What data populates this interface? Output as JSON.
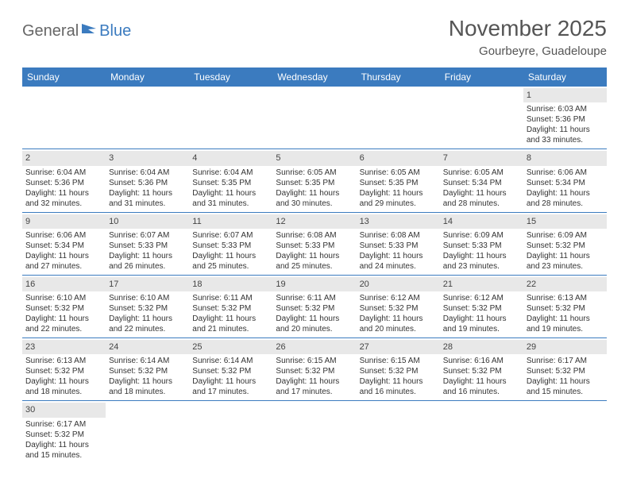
{
  "logo": {
    "general": "General",
    "blue": "Blue"
  },
  "title": "November 2025",
  "location": "Gourbeyre, Guadeloupe",
  "colors": {
    "header_bg": "#3b7bbf",
    "header_text": "#ffffff",
    "daynum_bg": "#e8e8e8",
    "border": "#3b7bbf"
  },
  "dayNames": [
    "Sunday",
    "Monday",
    "Tuesday",
    "Wednesday",
    "Thursday",
    "Friday",
    "Saturday"
  ],
  "weeks": [
    [
      null,
      null,
      null,
      null,
      null,
      null,
      {
        "n": "1",
        "sr": "6:03 AM",
        "ss": "5:36 PM",
        "dl": "11 hours and 33 minutes."
      }
    ],
    [
      {
        "n": "2",
        "sr": "6:04 AM",
        "ss": "5:36 PM",
        "dl": "11 hours and 32 minutes."
      },
      {
        "n": "3",
        "sr": "6:04 AM",
        "ss": "5:36 PM",
        "dl": "11 hours and 31 minutes."
      },
      {
        "n": "4",
        "sr": "6:04 AM",
        "ss": "5:35 PM",
        "dl": "11 hours and 31 minutes."
      },
      {
        "n": "5",
        "sr": "6:05 AM",
        "ss": "5:35 PM",
        "dl": "11 hours and 30 minutes."
      },
      {
        "n": "6",
        "sr": "6:05 AM",
        "ss": "5:35 PM",
        "dl": "11 hours and 29 minutes."
      },
      {
        "n": "7",
        "sr": "6:05 AM",
        "ss": "5:34 PM",
        "dl": "11 hours and 28 minutes."
      },
      {
        "n": "8",
        "sr": "6:06 AM",
        "ss": "5:34 PM",
        "dl": "11 hours and 28 minutes."
      }
    ],
    [
      {
        "n": "9",
        "sr": "6:06 AM",
        "ss": "5:34 PM",
        "dl": "11 hours and 27 minutes."
      },
      {
        "n": "10",
        "sr": "6:07 AM",
        "ss": "5:33 PM",
        "dl": "11 hours and 26 minutes."
      },
      {
        "n": "11",
        "sr": "6:07 AM",
        "ss": "5:33 PM",
        "dl": "11 hours and 25 minutes."
      },
      {
        "n": "12",
        "sr": "6:08 AM",
        "ss": "5:33 PM",
        "dl": "11 hours and 25 minutes."
      },
      {
        "n": "13",
        "sr": "6:08 AM",
        "ss": "5:33 PM",
        "dl": "11 hours and 24 minutes."
      },
      {
        "n": "14",
        "sr": "6:09 AM",
        "ss": "5:33 PM",
        "dl": "11 hours and 23 minutes."
      },
      {
        "n": "15",
        "sr": "6:09 AM",
        "ss": "5:32 PM",
        "dl": "11 hours and 23 minutes."
      }
    ],
    [
      {
        "n": "16",
        "sr": "6:10 AM",
        "ss": "5:32 PM",
        "dl": "11 hours and 22 minutes."
      },
      {
        "n": "17",
        "sr": "6:10 AM",
        "ss": "5:32 PM",
        "dl": "11 hours and 22 minutes."
      },
      {
        "n": "18",
        "sr": "6:11 AM",
        "ss": "5:32 PM",
        "dl": "11 hours and 21 minutes."
      },
      {
        "n": "19",
        "sr": "6:11 AM",
        "ss": "5:32 PM",
        "dl": "11 hours and 20 minutes."
      },
      {
        "n": "20",
        "sr": "6:12 AM",
        "ss": "5:32 PM",
        "dl": "11 hours and 20 minutes."
      },
      {
        "n": "21",
        "sr": "6:12 AM",
        "ss": "5:32 PM",
        "dl": "11 hours and 19 minutes."
      },
      {
        "n": "22",
        "sr": "6:13 AM",
        "ss": "5:32 PM",
        "dl": "11 hours and 19 minutes."
      }
    ],
    [
      {
        "n": "23",
        "sr": "6:13 AM",
        "ss": "5:32 PM",
        "dl": "11 hours and 18 minutes."
      },
      {
        "n": "24",
        "sr": "6:14 AM",
        "ss": "5:32 PM",
        "dl": "11 hours and 18 minutes."
      },
      {
        "n": "25",
        "sr": "6:14 AM",
        "ss": "5:32 PM",
        "dl": "11 hours and 17 minutes."
      },
      {
        "n": "26",
        "sr": "6:15 AM",
        "ss": "5:32 PM",
        "dl": "11 hours and 17 minutes."
      },
      {
        "n": "27",
        "sr": "6:15 AM",
        "ss": "5:32 PM",
        "dl": "11 hours and 16 minutes."
      },
      {
        "n": "28",
        "sr": "6:16 AM",
        "ss": "5:32 PM",
        "dl": "11 hours and 16 minutes."
      },
      {
        "n": "29",
        "sr": "6:17 AM",
        "ss": "5:32 PM",
        "dl": "11 hours and 15 minutes."
      }
    ],
    [
      {
        "n": "30",
        "sr": "6:17 AM",
        "ss": "5:32 PM",
        "dl": "11 hours and 15 minutes."
      },
      null,
      null,
      null,
      null,
      null,
      null
    ]
  ],
  "labels": {
    "sunrise": "Sunrise: ",
    "sunset": "Sunset: ",
    "daylight": "Daylight: "
  }
}
